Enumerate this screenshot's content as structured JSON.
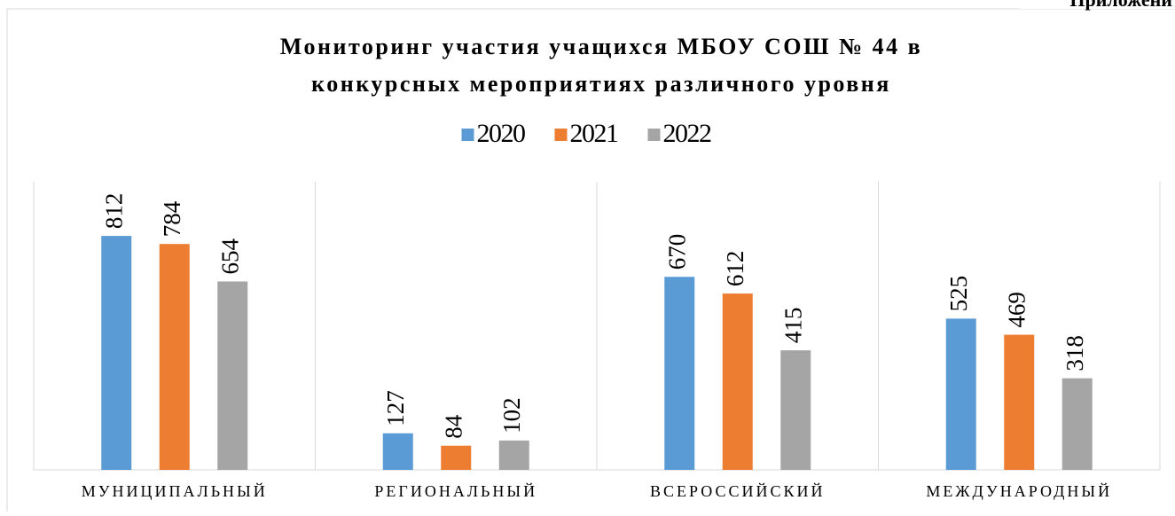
{
  "page_header": "Приложени",
  "chart_data": {
    "type": "bar",
    "title": [
      "Мониторинг участия учащихся МБОУ СОШ № 44 в",
      "конкурсных мероприятиях различного уровня"
    ],
    "categories": [
      "МУНИЦИПАЛЬНЫЙ",
      "РЕГИОНАЛЬНЫЙ",
      "ВСЕРОССИЙСКИЙ",
      "МЕЖДУНАРОДНЫЙ"
    ],
    "series": [
      {
        "name": "2020",
        "color": "#5b9bd5",
        "values": [
          812,
          127,
          670,
          525
        ]
      },
      {
        "name": "2021",
        "color": "#ed7d31",
        "values": [
          784,
          84,
          612,
          469
        ]
      },
      {
        "name": "2022",
        "color": "#a5a5a5",
        "values": [
          654,
          102,
          415,
          318
        ]
      }
    ],
    "ylim": [
      0,
      1000
    ],
    "legend": "top",
    "data_labels": true
  }
}
